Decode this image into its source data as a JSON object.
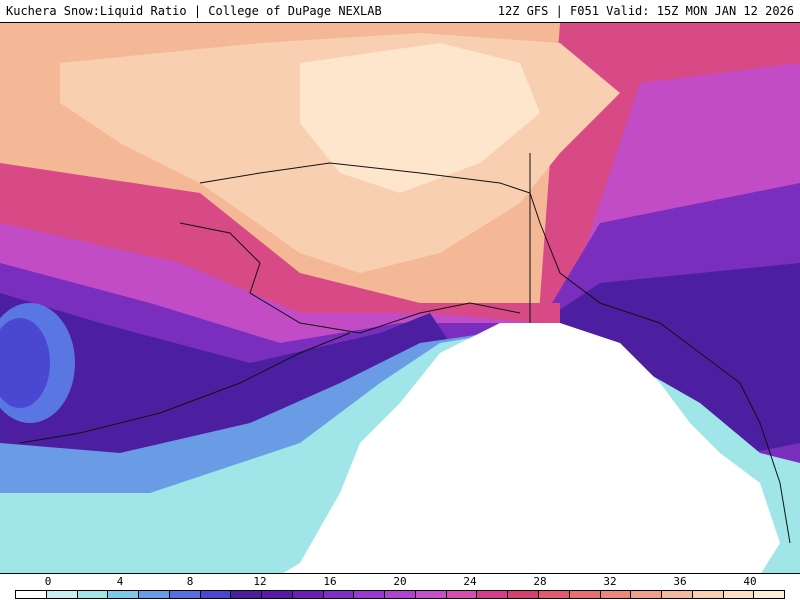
{
  "header": {
    "title": "Kuchera Snow:Liquid Ratio | College of DuPage NEXLAB",
    "run_info": "12Z GFS | F051 Valid: 15Z MON JAN 12 2026"
  },
  "map": {
    "region": "Alaska and Gulf of Alaska",
    "field": "Snow:Liquid Ratio"
  },
  "colorbar": {
    "labels": [
      "0",
      "4",
      "8",
      "12",
      "16",
      "20",
      "24",
      "28",
      "32",
      "36",
      "40"
    ],
    "colors": [
      "#ffffff",
      "#c8f0f0",
      "#a0e6e8",
      "#7ec8ea",
      "#6a9ce6",
      "#5670e0",
      "#4a48d2",
      "#4a1e9c",
      "#5a1aa6",
      "#6e1eb4",
      "#822ec2",
      "#9a3ad0",
      "#b044d0",
      "#c650c8",
      "#d64cb0",
      "#d63c8c",
      "#d44070",
      "#de5c70",
      "#e67070",
      "#ec8878",
      "#f0a08a",
      "#f4ba9c",
      "#f8cfb0",
      "#fbe0c2",
      "#fdeed8"
    ]
  }
}
